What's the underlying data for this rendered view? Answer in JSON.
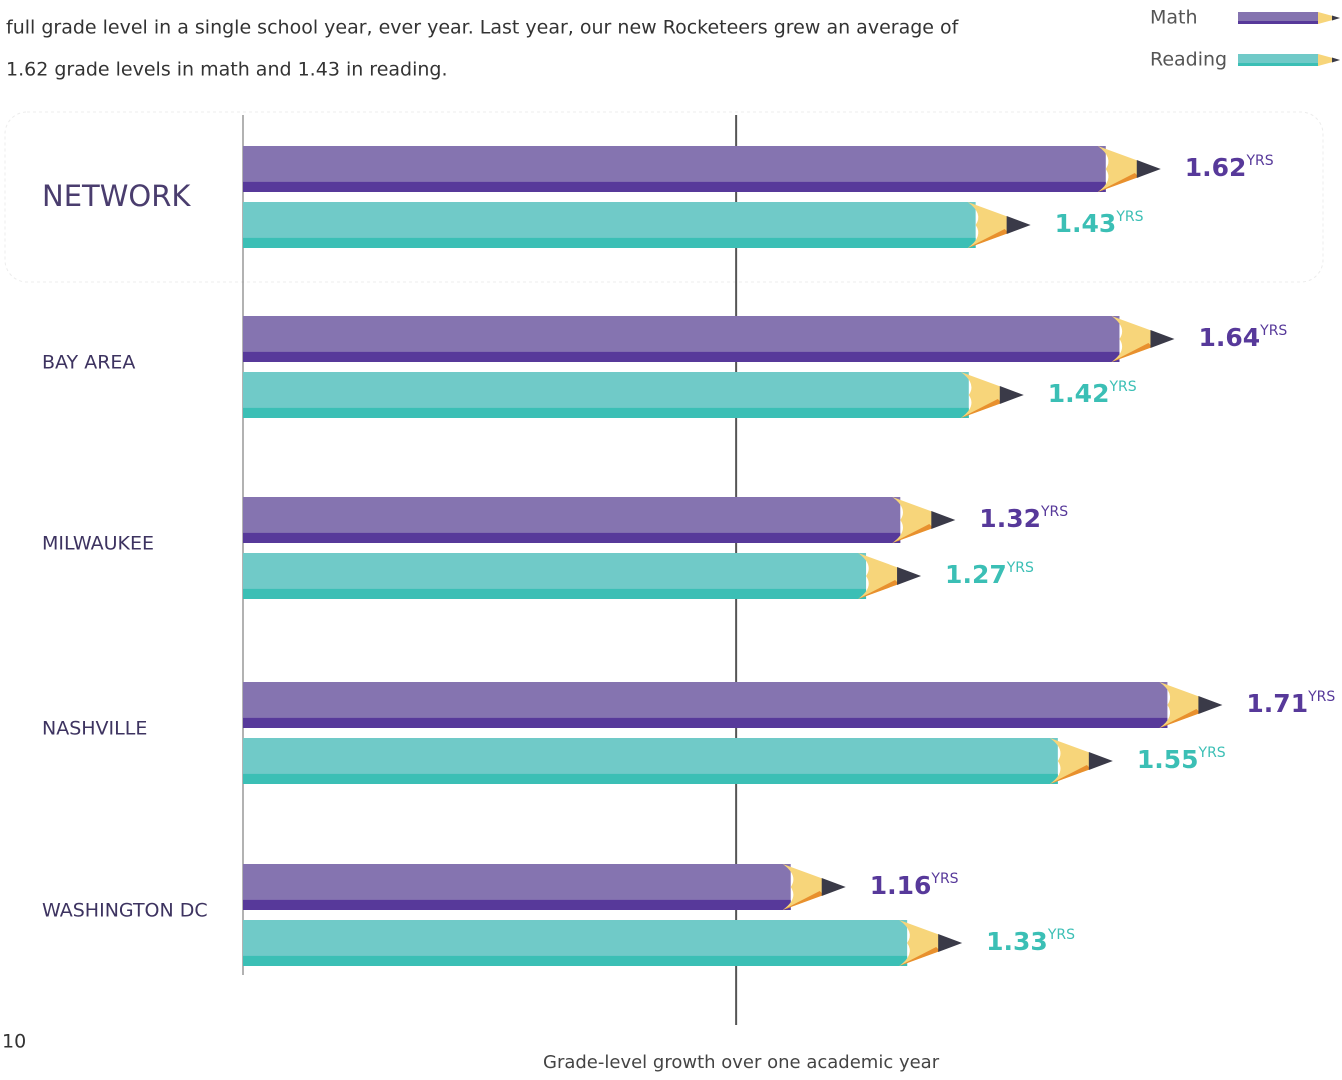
{
  "chart_data": {
    "type": "pencil-bar",
    "intro": [
      "full grade level in a single school year, ever year. Last year, our new Rocketeers grew an average of",
      "1.62 grade levels in math and 1.43 in reading."
    ],
    "categories": [
      "NETWORK",
      "BAY AREA",
      "MILWAUKEE",
      "NASHVILLE",
      "WASHINGTON DC"
    ],
    "series": [
      {
        "name": "Math",
        "color": "#8574b0",
        "values": [
          1.62,
          1.64,
          1.32,
          1.71,
          1.16
        ]
      },
      {
        "name": "Reading",
        "color": "#70cac8",
        "values": [
          1.43,
          1.42,
          1.27,
          1.55,
          1.33
        ]
      }
    ],
    "unit": "YRS",
    "xlim": [
      0.28,
      1.87
    ],
    "reference_line": 1,
    "xlabel": "Grade-level growth over one academic year",
    "page_number": "10",
    "legend": "top-right"
  }
}
